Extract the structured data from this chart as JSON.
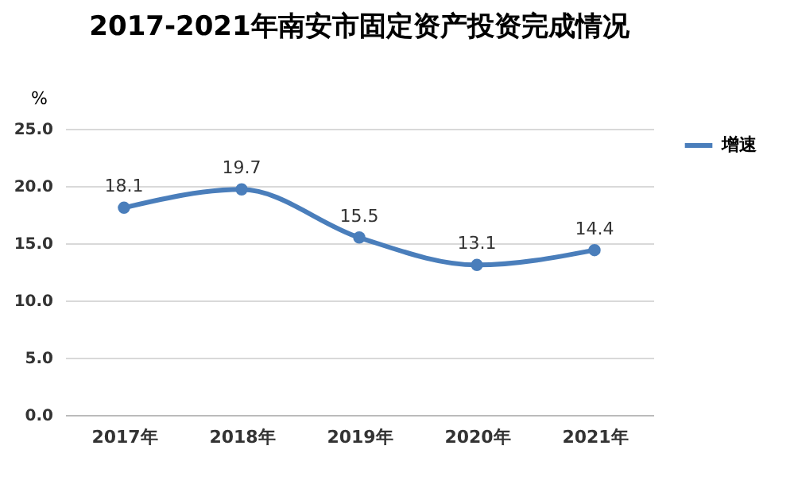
{
  "chart_data": {
    "type": "line",
    "title": "2017-2021年南安市固定资产投资完成情况",
    "ylabel": "%",
    "categories": [
      "2017年",
      "2018年",
      "2019年",
      "2020年",
      "2021年"
    ],
    "series": [
      {
        "name": "增速",
        "color": "#4a7ebb",
        "values": [
          18.1,
          19.7,
          15.5,
          13.1,
          14.4
        ]
      }
    ],
    "ylim": [
      0,
      25
    ],
    "yticks": [
      {
        "value": 0,
        "label": "0.0"
      },
      {
        "value": 5,
        "label": "5.0"
      },
      {
        "value": 10,
        "label": "10.0"
      },
      {
        "value": 15,
        "label": "15.0"
      },
      {
        "value": 20,
        "label": "20.0"
      },
      {
        "value": 25,
        "label": "25.0"
      }
    ],
    "grid": "y",
    "legend": "right",
    "marker": "circle",
    "data_labels": true
  }
}
